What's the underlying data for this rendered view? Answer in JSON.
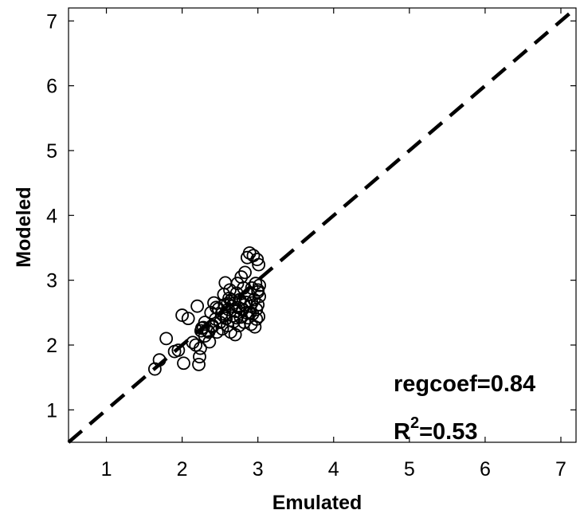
{
  "chart_data": {
    "type": "scatter",
    "title": "",
    "xlabel": "Emulated",
    "ylabel": "Modeled",
    "xlim": [
      0.5,
      7.2
    ],
    "ylim": [
      0.5,
      7.2
    ],
    "xticks": [
      1,
      2,
      3,
      4,
      5,
      6,
      7
    ],
    "yticks": [
      1,
      2,
      3,
      4,
      5,
      6,
      7
    ],
    "grid": false,
    "marker": "open-circle",
    "reference_line": {
      "type": "identity",
      "style": "dashed"
    },
    "annotations": {
      "regcoef_text": "regcoef=0.84",
      "r2_prefix": "R",
      "r2_exp": "2",
      "r2_value": "=0.53"
    },
    "points": [
      [
        1.64,
        1.63
      ],
      [
        1.7,
        1.77
      ],
      [
        1.79,
        2.1
      ],
      [
        1.9,
        1.9
      ],
      [
        1.95,
        1.92
      ],
      [
        2.0,
        2.46
      ],
      [
        2.02,
        1.72
      ],
      [
        2.08,
        2.41
      ],
      [
        2.14,
        2.04
      ],
      [
        2.18,
        2.0
      ],
      [
        2.2,
        2.6
      ],
      [
        2.22,
        1.7
      ],
      [
        2.23,
        1.82
      ],
      [
        2.24,
        1.95
      ],
      [
        2.25,
        2.22
      ],
      [
        2.28,
        2.27
      ],
      [
        2.3,
        2.35
      ],
      [
        2.3,
        2.14
      ],
      [
        2.34,
        2.22
      ],
      [
        2.36,
        2.05
      ],
      [
        2.38,
        2.5
      ],
      [
        2.4,
        2.3
      ],
      [
        2.42,
        2.65
      ],
      [
        2.44,
        2.4
      ],
      [
        2.46,
        2.2
      ],
      [
        2.48,
        2.56
      ],
      [
        2.5,
        2.35
      ],
      [
        2.52,
        2.48
      ],
      [
        2.53,
        2.25
      ],
      [
        2.55,
        2.78
      ],
      [
        2.56,
        2.62
      ],
      [
        2.57,
        2.96
      ],
      [
        2.58,
        2.41
      ],
      [
        2.6,
        2.3
      ],
      [
        2.61,
        2.55
      ],
      [
        2.62,
        2.72
      ],
      [
        2.63,
        2.85
      ],
      [
        2.64,
        2.2
      ],
      [
        2.66,
        2.6
      ],
      [
        2.67,
        2.45
      ],
      [
        2.68,
        2.36
      ],
      [
        2.69,
        2.65
      ],
      [
        2.7,
        2.16
      ],
      [
        2.71,
        2.52
      ],
      [
        2.72,
        2.8
      ],
      [
        2.73,
        2.95
      ],
      [
        2.74,
        2.58
      ],
      [
        2.75,
        2.3
      ],
      [
        2.76,
        2.7
      ],
      [
        2.77,
        2.43
      ],
      [
        2.78,
        3.05
      ],
      [
        2.8,
        2.55
      ],
      [
        2.81,
        2.88
      ],
      [
        2.82,
        2.35
      ],
      [
        2.83,
        3.12
      ],
      [
        2.84,
        2.66
      ],
      [
        2.85,
        2.5
      ],
      [
        2.86,
        3.35
      ],
      [
        2.87,
        2.42
      ],
      [
        2.88,
        2.78
      ],
      [
        2.89,
        3.42
      ],
      [
        2.9,
        2.6
      ],
      [
        2.91,
        2.32
      ],
      [
        2.92,
        2.88
      ],
      [
        2.93,
        2.48
      ],
      [
        2.94,
        3.38
      ],
      [
        2.95,
        2.7
      ],
      [
        2.96,
        2.28
      ],
      [
        2.97,
        2.95
      ],
      [
        2.98,
        2.55
      ],
      [
        2.99,
        3.32
      ],
      [
        3.0,
        2.82
      ],
      [
        3.0,
        2.62
      ],
      [
        3.01,
        2.44
      ],
      [
        3.01,
        3.24
      ],
      [
        3.02,
        2.92
      ],
      [
        3.02,
        2.75
      ],
      [
        2.26,
        2.26
      ],
      [
        2.4,
        2.28
      ],
      [
        2.55,
        2.45
      ],
      [
        2.65,
        2.7
      ],
      [
        2.72,
        2.42
      ],
      [
        2.9,
        2.5
      ],
      [
        2.98,
        2.4
      ],
      [
        2.45,
        2.58
      ],
      [
        2.6,
        2.64
      ],
      [
        2.35,
        2.2
      ],
      [
        2.82,
        2.62
      ],
      [
        3.0,
        2.85
      ],
      [
        2.92,
        2.65
      ]
    ]
  }
}
